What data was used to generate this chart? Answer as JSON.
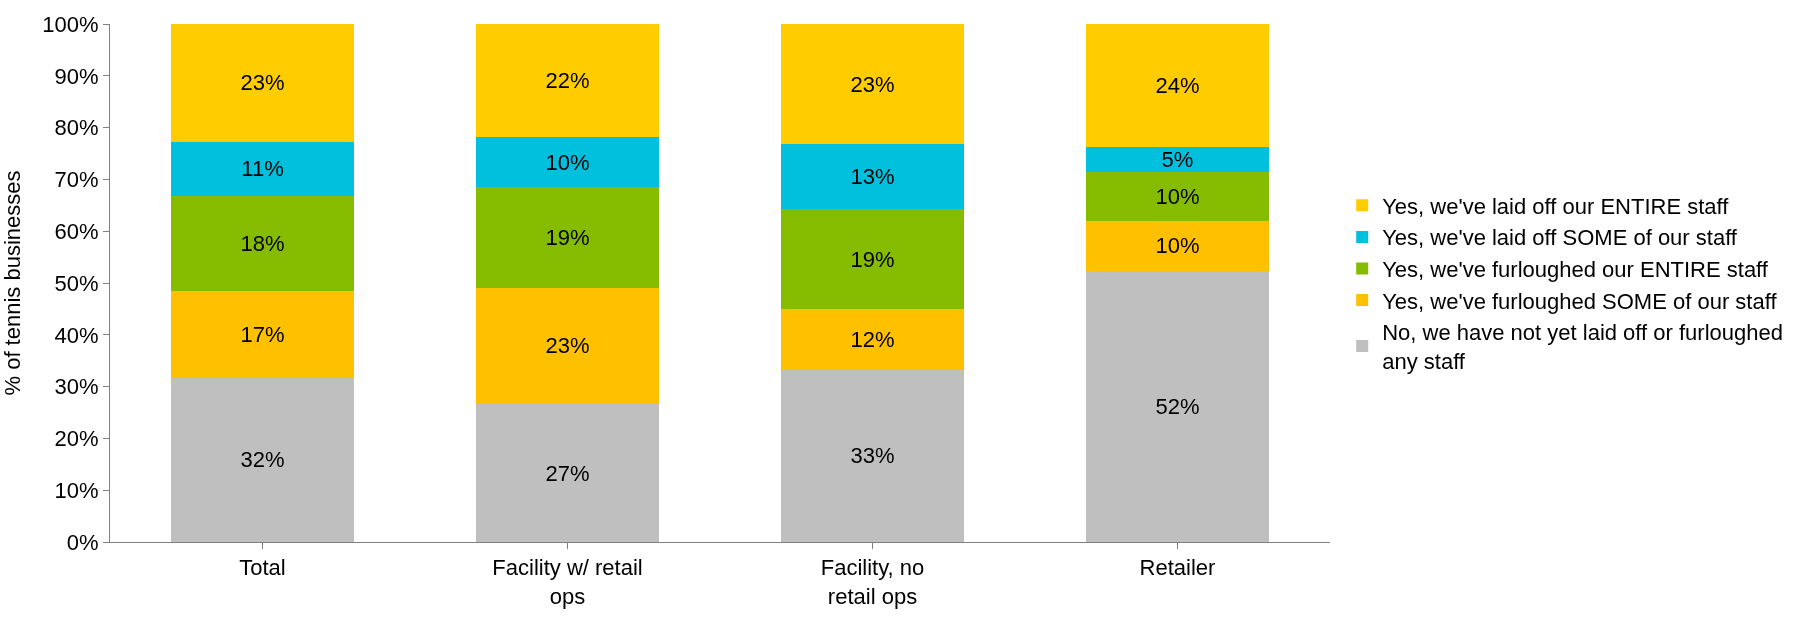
{
  "chart_data": {
    "type": "bar",
    "stacked": true,
    "ylabel": "% of tennis businesses",
    "categories": [
      "Total",
      "Facility w/ retail ops",
      "Facility, no retail ops",
      "Retailer"
    ],
    "series": [
      {
        "name": "No, we have not yet laid off or furloughed any staff",
        "color": "#bfbfbf",
        "values": [
          31.7,
          26.6,
          33.3,
          52.4
        ],
        "value_labels": [
          "32%",
          "27%",
          "33%",
          "52%"
        ]
      },
      {
        "name": "Yes, we've furloughed SOME of our staff",
        "color": "#ffc000",
        "values": [
          16.7,
          22.5,
          11.7,
          9.5
        ],
        "value_labels": [
          "17%",
          "23%",
          "12%",
          "10%"
        ]
      },
      {
        "name": "Yes, we've furloughed our ENTIRE staff",
        "color": "#86bc00",
        "values": [
          18.4,
          19.5,
          19.2,
          9.5
        ],
        "value_labels": [
          "18%",
          "19%",
          "19%",
          "10%"
        ]
      },
      {
        "name": "Yes, we've laid off SOME of our staff",
        "color": "#00c0de",
        "values": [
          10.5,
          9.5,
          12.6,
          4.8
        ],
        "value_labels": [
          "11%",
          "10%",
          "13%",
          "5%"
        ]
      },
      {
        "name": "Yes, we've laid off our ENTIRE staff",
        "color": "#ffcc00",
        "values": [
          22.7,
          21.9,
          23.2,
          23.8
        ],
        "value_labels": [
          "23%",
          "22%",
          "23%",
          "24%"
        ]
      }
    ],
    "ylim": [
      0,
      100
    ],
    "yticks": [
      {
        "value": 0,
        "label": "0%"
      },
      {
        "value": 10,
        "label": "10%"
      },
      {
        "value": 20,
        "label": "20%"
      },
      {
        "value": 30,
        "label": "30%"
      },
      {
        "value": 40,
        "label": "40%"
      },
      {
        "value": 50,
        "label": "50%"
      },
      {
        "value": 60,
        "label": "60%"
      },
      {
        "value": 70,
        "label": "70%"
      },
      {
        "value": 80,
        "label": "80%"
      },
      {
        "value": 90,
        "label": "90%"
      },
      {
        "value": 100,
        "label": "100%"
      }
    ],
    "legend": "right"
  }
}
